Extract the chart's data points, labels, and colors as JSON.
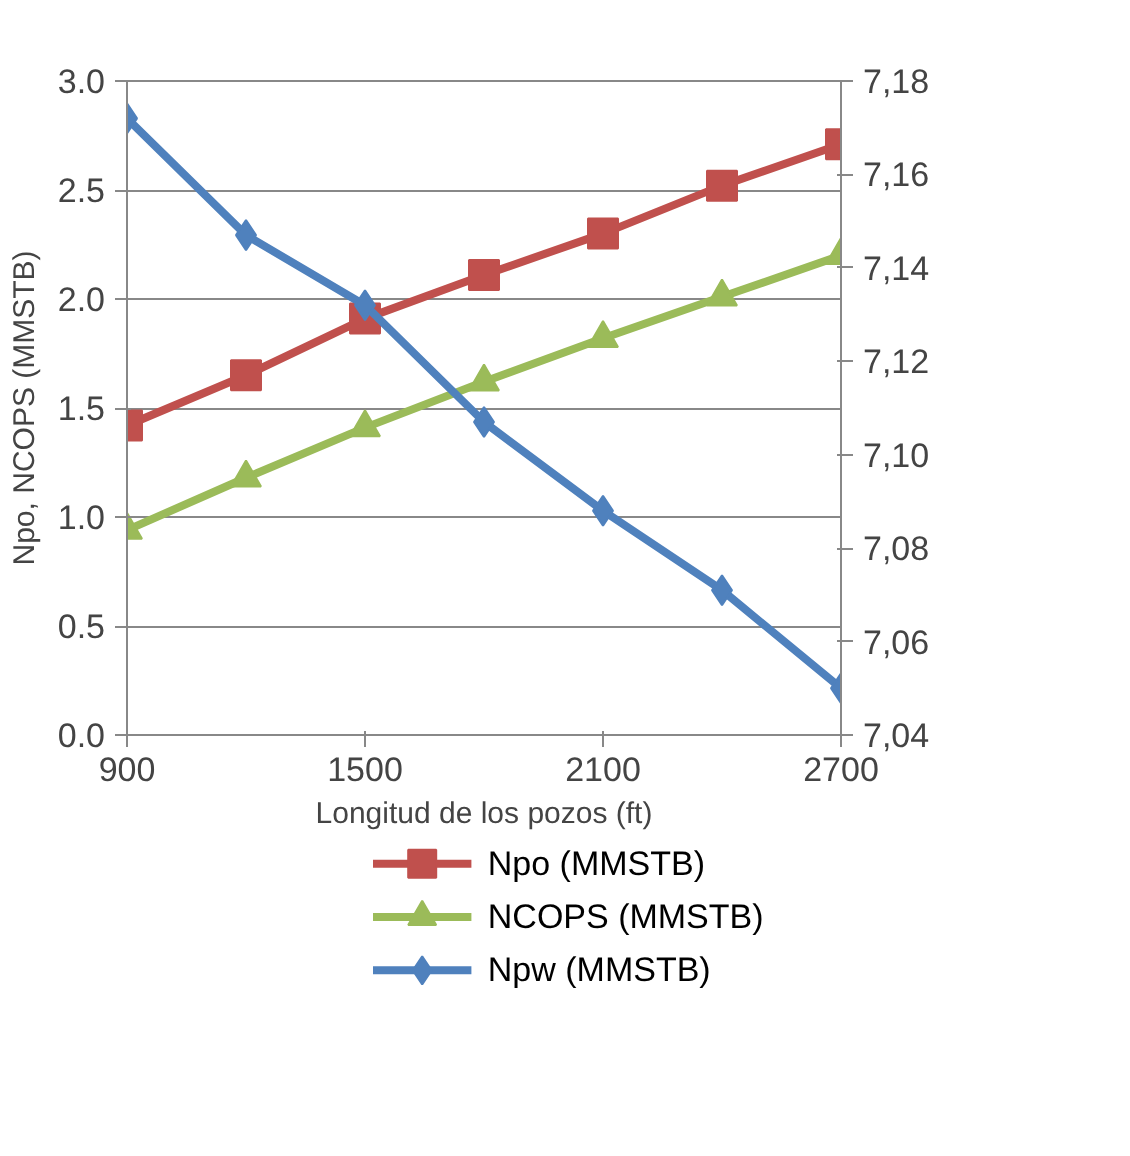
{
  "chart_data": {
    "type": "line",
    "xlabel": "Longitud de los pozos (ft)",
    "ylabel": "Npo, NCOPS (MMSTB)",
    "x": [
      900,
      1200,
      1500,
      1800,
      2100,
      2400,
      2700
    ],
    "xlim": [
      900,
      2700
    ],
    "xticks": [
      900,
      1500,
      2100,
      2700
    ],
    "ylim": [
      0,
      3
    ],
    "yticks": [
      {
        "value": 0,
        "label": "0.0"
      },
      {
        "value": 0.5,
        "label": "0.5"
      },
      {
        "value": 1,
        "label": "1.0"
      },
      {
        "value": 1.5,
        "label": "1.5"
      },
      {
        "value": 2,
        "label": "2.0"
      },
      {
        "value": 2.5,
        "label": "2.5"
      },
      {
        "value": 3,
        "label": "3.0"
      }
    ],
    "y2lim": [
      7.04,
      7.18
    ],
    "y2ticks": [
      {
        "value": 7.04,
        "label": "7,04"
      },
      {
        "value": 7.06,
        "label": "7,06"
      },
      {
        "value": 7.08,
        "label": "7,08"
      },
      {
        "value": 7.1,
        "label": "7,10"
      },
      {
        "value": 7.12,
        "label": "7,12"
      },
      {
        "value": 7.14,
        "label": "7,14"
      },
      {
        "value": 7.16,
        "label": "7,16"
      },
      {
        "value": 7.18,
        "label": "7,18"
      }
    ],
    "grid": "y",
    "legend": "bottom",
    "series": [
      {
        "name": "Npo (MMSTB)",
        "color": "#c0504d",
        "marker": "square",
        "values": [
          1.42,
          1.65,
          1.91,
          2.11,
          2.3,
          2.52,
          2.71
        ]
      },
      {
        "name": "NCOPS (MMSTB)",
        "color": "#9bbb59",
        "marker": "triangle",
        "values": [
          0.94,
          1.18,
          1.41,
          1.62,
          1.82,
          2.01,
          2.2
        ]
      },
      {
        "name": "Npw (MMSTB)",
        "color": "#4f81bd",
        "marker": "diamond",
        "axis": "y2",
        "values": [
          7.172,
          7.147,
          7.132,
          7.107,
          7.088,
          7.071,
          7.05
        ]
      }
    ]
  }
}
